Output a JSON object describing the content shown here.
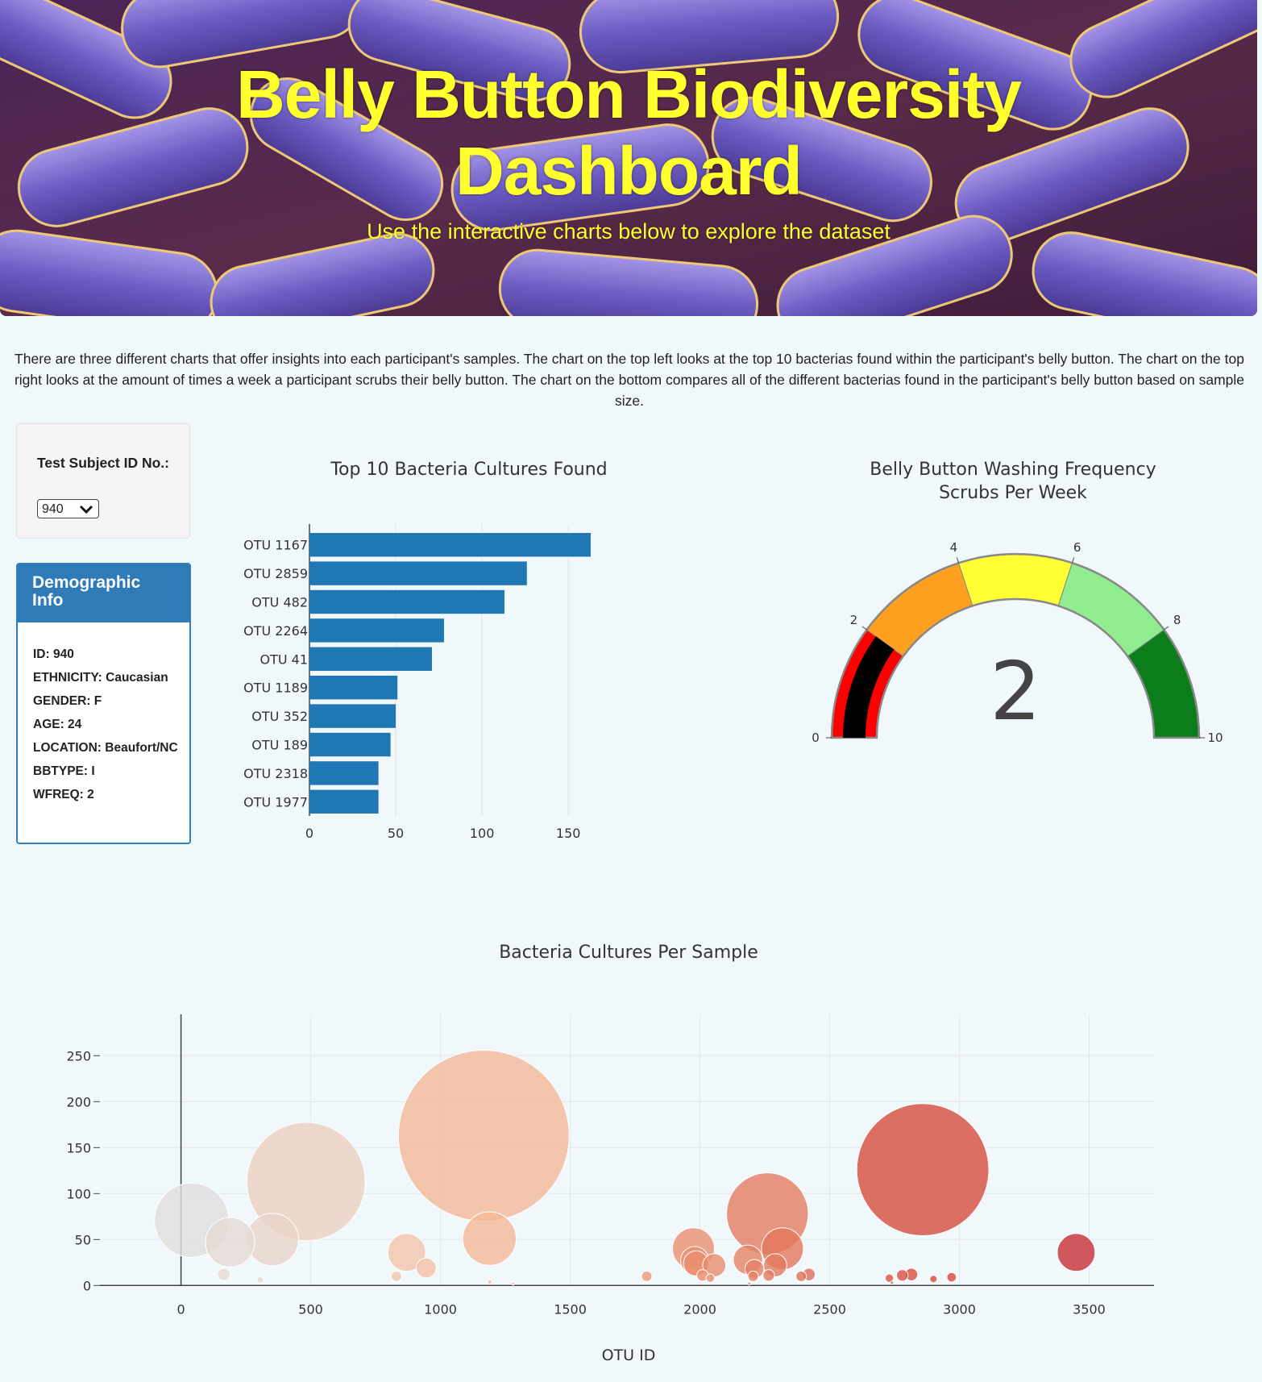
{
  "header": {
    "title_line1": "Belly Button Biodiversity",
    "title_line2": "Dashboard",
    "subtitle": "Use the interactive charts below to explore the dataset"
  },
  "intro_text": "There are three different charts that offer insights into each participant's samples. The chart on the top left looks at the top 10 bacterias found within the participant's belly button. The chart on the top right looks at the amount of times a week a participant scrubs their belly button. The chart on the bottom compares all of the different bacterias found in the participant's belly button based on sample size.",
  "selector": {
    "label": "Test Subject ID No.:",
    "selected": "940"
  },
  "demographics": {
    "title": "Demographic Info",
    "rows": [
      "ID: 940",
      "ETHNICITY: Caucasian",
      "GENDER: F",
      "AGE: 24",
      "LOCATION: Beaufort/NC",
      "BBTYPE: I",
      "WFREQ: 2"
    ]
  },
  "colors": {
    "bar": "#1f77b4",
    "accent": "#2e7bb8",
    "title_yellow": "#ffff2e"
  },
  "chart_data": [
    {
      "type": "bar",
      "orientation": "horizontal",
      "title": "Top 10 Bacteria Cultures Found",
      "categories": [
        "OTU 1167",
        "OTU 2859",
        "OTU 482",
        "OTU 2264",
        "OTU 41",
        "OTU 1189",
        "OTU 352",
        "OTU 189",
        "OTU 2318",
        "OTU 1977"
      ],
      "values": [
        163,
        126,
        113,
        78,
        71,
        51,
        50,
        47,
        40,
        40
      ],
      "xlim": [
        0,
        170
      ],
      "xticks": [
        0,
        50,
        100,
        150
      ],
      "grid": true
    },
    {
      "type": "gauge",
      "title": "Belly Button Washing Frequency",
      "subtitle": "Scrubs Per Week",
      "value": 2,
      "range": [
        0,
        10
      ],
      "ticks": [
        0,
        2,
        4,
        6,
        8,
        10
      ],
      "steps": [
        {
          "range": [
            0,
            2
          ],
          "color": "#ff0000"
        },
        {
          "range": [
            2,
            4
          ],
          "color": "#ffa020"
        },
        {
          "range": [
            4,
            6
          ],
          "color": "#ffff33"
        },
        {
          "range": [
            6,
            8
          ],
          "color": "#90ee90"
        },
        {
          "range": [
            8,
            10
          ],
          "color": "#0b7d1a"
        }
      ],
      "bar_color": "#000000"
    },
    {
      "type": "scatter",
      "title": "Bacteria Cultures Per Sample",
      "xlabel": "OTU ID",
      "xlim": [
        -300,
        3750
      ],
      "ylim": [
        -5,
        295
      ],
      "xticks": [
        0,
        500,
        1000,
        1500,
        2000,
        2500,
        3000,
        3500
      ],
      "yticks": [
        0,
        50,
        100,
        150,
        200,
        250
      ],
      "grid": true,
      "colorscale": [
        "#e0e0e0",
        "#f2c9b3",
        "#f5b08c",
        "#e8896b",
        "#d84f3e",
        "#c42e35"
      ],
      "points": [
        {
          "x": 41,
          "y": 71
        },
        {
          "x": 189,
          "y": 47
        },
        {
          "x": 352,
          "y": 50
        },
        {
          "x": 482,
          "y": 113
        },
        {
          "x": 1167,
          "y": 163
        },
        {
          "x": 1189,
          "y": 51
        },
        {
          "x": 870,
          "y": 36
        },
        {
          "x": 945,
          "y": 19
        },
        {
          "x": 830,
          "y": 10
        },
        {
          "x": 165,
          "y": 12
        },
        {
          "x": 305,
          "y": 6
        },
        {
          "x": 1190,
          "y": 4
        },
        {
          "x": 1280,
          "y": 2
        },
        {
          "x": 1795,
          "y": 10
        },
        {
          "x": 1975,
          "y": 40
        },
        {
          "x": 1980,
          "y": 27
        },
        {
          "x": 1985,
          "y": 24
        },
        {
          "x": 2055,
          "y": 22
        },
        {
          "x": 2010,
          "y": 11
        },
        {
          "x": 2040,
          "y": 8
        },
        {
          "x": 2185,
          "y": 28
        },
        {
          "x": 2260,
          "y": 78
        },
        {
          "x": 2318,
          "y": 40
        },
        {
          "x": 2290,
          "y": 22
        },
        {
          "x": 2210,
          "y": 18
        },
        {
          "x": 2205,
          "y": 10
        },
        {
          "x": 2265,
          "y": 11
        },
        {
          "x": 2190,
          "y": 2
        },
        {
          "x": 2390,
          "y": 10
        },
        {
          "x": 2420,
          "y": 12
        },
        {
          "x": 2859,
          "y": 126
        },
        {
          "x": 2730,
          "y": 8
        },
        {
          "x": 2780,
          "y": 11
        },
        {
          "x": 2815,
          "y": 12
        },
        {
          "x": 2900,
          "y": 7
        },
        {
          "x": 2970,
          "y": 9
        },
        {
          "x": 3450,
          "y": 36
        },
        {
          "x": 2740,
          "y": 3
        }
      ]
    }
  ]
}
